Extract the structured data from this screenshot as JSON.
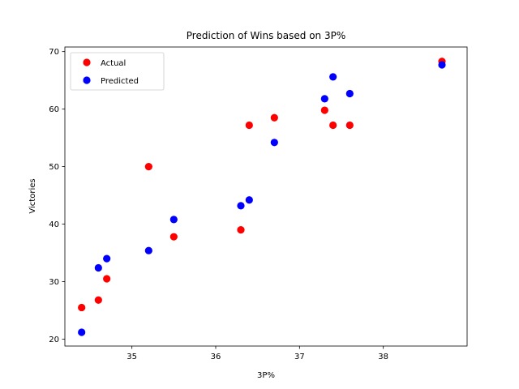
{
  "chart_data": {
    "type": "scatter",
    "title": "Prediction of Wins based on 3P%",
    "xlabel": "3P%",
    "ylabel": "Victories",
    "xlim": [
      34.2,
      39.0
    ],
    "ylim": [
      18.8,
      70.8
    ],
    "xticks": [
      35,
      36,
      37,
      38
    ],
    "yticks": [
      20,
      30,
      40,
      50,
      60,
      70
    ],
    "grid": false,
    "legend_position": "top-left",
    "series": [
      {
        "name": "Actual",
        "color": "#ff0000",
        "points": [
          {
            "x": 34.4,
            "y": 25.5
          },
          {
            "x": 34.6,
            "y": 26.8
          },
          {
            "x": 34.7,
            "y": 30.5
          },
          {
            "x": 35.2,
            "y": 50.0
          },
          {
            "x": 35.5,
            "y": 37.8
          },
          {
            "x": 36.3,
            "y": 39.0
          },
          {
            "x": 36.4,
            "y": 57.2
          },
          {
            "x": 36.7,
            "y": 58.5
          },
          {
            "x": 37.3,
            "y": 59.8
          },
          {
            "x": 37.4,
            "y": 57.2
          },
          {
            "x": 37.6,
            "y": 57.2
          },
          {
            "x": 38.7,
            "y": 68.3
          }
        ]
      },
      {
        "name": "Predicted",
        "color": "#0000ff",
        "points": [
          {
            "x": 34.4,
            "y": 21.2
          },
          {
            "x": 34.6,
            "y": 32.4
          },
          {
            "x": 34.7,
            "y": 34.0
          },
          {
            "x": 35.2,
            "y": 35.4
          },
          {
            "x": 35.5,
            "y": 40.8
          },
          {
            "x": 36.3,
            "y": 43.2
          },
          {
            "x": 36.4,
            "y": 44.2
          },
          {
            "x": 36.7,
            "y": 54.2
          },
          {
            "x": 37.3,
            "y": 61.8
          },
          {
            "x": 37.4,
            "y": 65.6
          },
          {
            "x": 37.6,
            "y": 62.7
          },
          {
            "x": 38.7,
            "y": 67.7
          }
        ]
      }
    ]
  }
}
